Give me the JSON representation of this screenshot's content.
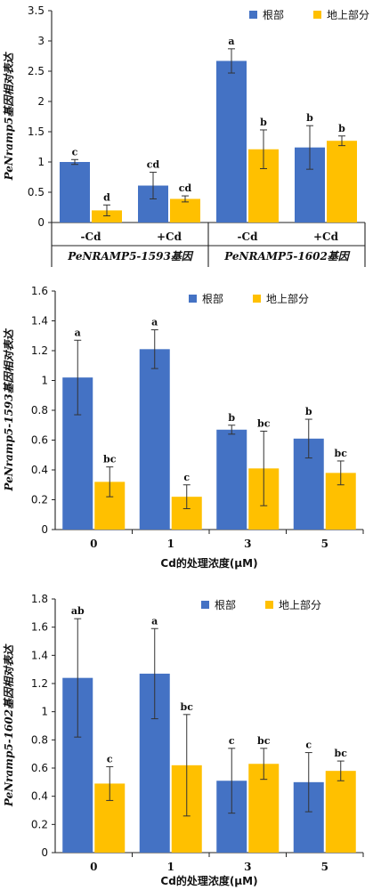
{
  "colors": {
    "root": "#4472C4",
    "shoot": "#FFC000"
  },
  "chart_data": [
    {
      "type": "bar",
      "ylabel": "PeNramp5基因相对表达",
      "xlabel": "",
      "ylim": [
        0,
        3.5
      ],
      "yticks": [
        "0",
        "0.5",
        "1",
        "1.5",
        "2",
        "2.5",
        "3",
        "3.5"
      ],
      "categories": [
        "-Cd",
        "+Cd",
        "-Cd",
        "+Cd"
      ],
      "groups": [
        "PeNRAMP5-1593基因",
        "PeNRAMP5-1602基因"
      ],
      "legend": [
        "根部",
        "地上部分"
      ],
      "legend_position": "top-right",
      "series": [
        {
          "name": "根部",
          "values": [
            1.0,
            0.61,
            2.67,
            1.24
          ],
          "errors": [
            0.04,
            0.22,
            0.2,
            0.36
          ],
          "labels": [
            "c",
            "cd",
            "a",
            "b"
          ]
        },
        {
          "name": "地上部分",
          "values": [
            0.2,
            0.39,
            1.21,
            1.35
          ],
          "errors": [
            0.09,
            0.05,
            0.32,
            0.08
          ],
          "labels": [
            "d",
            "cd",
            "b",
            "b"
          ]
        }
      ]
    },
    {
      "type": "bar",
      "ylabel": "PeNramp5-1593基因相对表达",
      "xlabel": "Cd的处理浓度(μM)",
      "ylim": [
        0,
        1.6
      ],
      "yticks": [
        "0",
        "0.2",
        "0.4",
        "0.6",
        "0.8",
        "1",
        "1.2",
        "1.4",
        "1.6"
      ],
      "categories": [
        "0",
        "1",
        "3",
        "5"
      ],
      "legend": [
        "根部",
        "地上部分"
      ],
      "legend_position": "top-right",
      "series": [
        {
          "name": "根部",
          "values": [
            1.02,
            1.21,
            0.67,
            0.61
          ],
          "errors": [
            0.25,
            0.13,
            0.03,
            0.13
          ],
          "labels": [
            "a",
            "a",
            "b",
            "b"
          ]
        },
        {
          "name": "地上部分",
          "values": [
            0.32,
            0.22,
            0.41,
            0.38
          ],
          "errors": [
            0.1,
            0.08,
            0.25,
            0.08
          ],
          "labels": [
            "bc",
            "c",
            "bc",
            "bc"
          ]
        }
      ]
    },
    {
      "type": "bar",
      "ylabel": "PeNramp5-1602基因相对表达",
      "xlabel": "Cd的处理浓度(μM)",
      "ylim": [
        0,
        1.8
      ],
      "yticks": [
        "0",
        "0.2",
        "0.4",
        "0.6",
        "0.8",
        "1",
        "1.2",
        "1.4",
        "1.6",
        "1.8"
      ],
      "categories": [
        "0",
        "1",
        "3",
        "5"
      ],
      "legend": [
        "根部",
        "地上部分"
      ],
      "legend_position": "top-right",
      "series": [
        {
          "name": "根部",
          "values": [
            1.24,
            1.27,
            0.51,
            0.5
          ],
          "errors": [
            0.42,
            0.32,
            0.23,
            0.21
          ],
          "labels": [
            "ab",
            "a",
            "c",
            "c"
          ]
        },
        {
          "name": "地上部分",
          "values": [
            0.49,
            0.62,
            0.63,
            0.58
          ],
          "errors": [
            0.12,
            0.36,
            0.11,
            0.07
          ],
          "labels": [
            "c",
            "bc",
            "bc",
            "bc"
          ]
        }
      ]
    }
  ]
}
